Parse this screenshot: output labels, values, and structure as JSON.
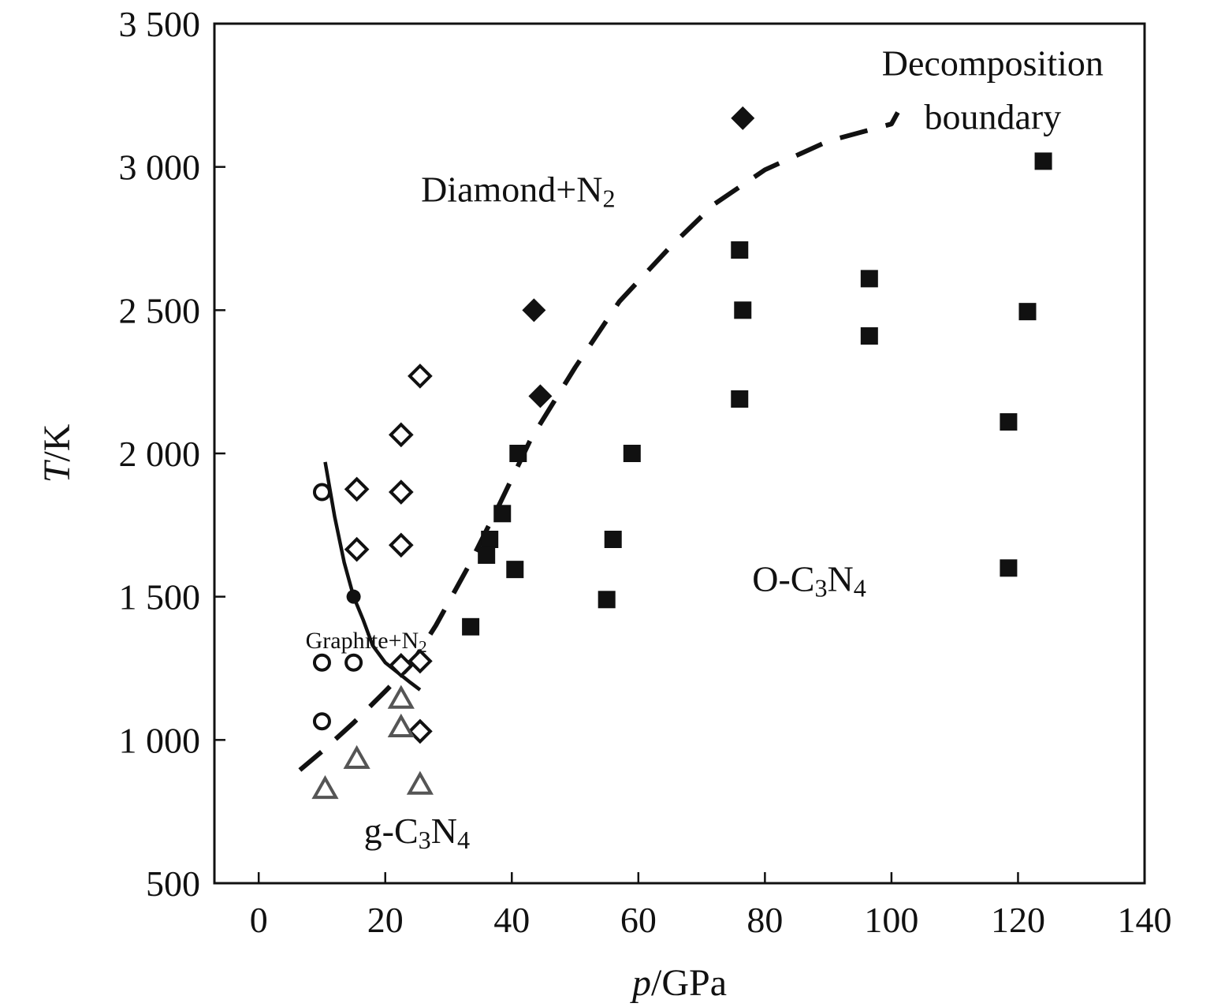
{
  "chart_data": {
    "type": "scatter",
    "title": "",
    "xlabel": {
      "italic": "p",
      "rest": "/GPa"
    },
    "ylabel": {
      "italic": "T",
      "rest": "/K"
    },
    "xlim": [
      -7,
      140
    ],
    "ylim": [
      500,
      3500
    ],
    "x_ticks": [
      0,
      20,
      40,
      60,
      80,
      100,
      120,
      140
    ],
    "x_tick_labels": [
      "0",
      "20",
      "40",
      "60",
      "80",
      "100",
      "120",
      "140"
    ],
    "y_ticks": [
      500,
      1000,
      1500,
      2000,
      2500,
      3000,
      3500
    ],
    "y_tick_labels": [
      "500",
      "1 000",
      "1 500",
      "2 000",
      "2 500",
      "3 000",
      "3 500"
    ],
    "grid": false,
    "series": [
      {
        "marker": "open-circle",
        "points": [
          [
            10,
            1865
          ],
          [
            10,
            1270
          ],
          [
            15,
            1270
          ],
          [
            10,
            1065
          ]
        ]
      },
      {
        "marker": "open-diamond",
        "points": [
          [
            25.5,
            2270
          ],
          [
            22.5,
            2065
          ],
          [
            15.5,
            1875
          ],
          [
            22.5,
            1865
          ],
          [
            15.5,
            1665
          ],
          [
            22.5,
            1680
          ],
          [
            22.5,
            1260
          ],
          [
            25.5,
            1275
          ],
          [
            25.5,
            1030
          ]
        ]
      },
      {
        "marker": "open-triangle",
        "color": "#555555",
        "points": [
          [
            22.5,
            1145
          ],
          [
            22.5,
            1045
          ],
          [
            15.5,
            935
          ],
          [
            10.5,
            830
          ],
          [
            25.5,
            845
          ]
        ]
      },
      {
        "marker": "filled-diamond",
        "points": [
          [
            76.5,
            3170
          ],
          [
            43.5,
            2500
          ],
          [
            44.5,
            2200
          ]
        ]
      },
      {
        "marker": "filled-square",
        "points": [
          [
            124,
            3020
          ],
          [
            76,
            2710
          ],
          [
            96.5,
            2610
          ],
          [
            76.5,
            2500
          ],
          [
            121.5,
            2495
          ],
          [
            96.5,
            2410
          ],
          [
            76,
            2190
          ],
          [
            118.5,
            2110
          ],
          [
            41,
            2000
          ],
          [
            59,
            2000
          ],
          [
            38.5,
            1790
          ],
          [
            36.5,
            1700
          ],
          [
            56,
            1700
          ],
          [
            36,
            1645
          ],
          [
            40.5,
            1595
          ],
          [
            118.5,
            1600
          ],
          [
            55,
            1490
          ],
          [
            33.5,
            1395
          ]
        ]
      }
    ],
    "boundaries": [
      {
        "style": "solid",
        "points": [
          [
            10.5,
            1970
          ],
          [
            12,
            1780
          ],
          [
            13.5,
            1620
          ],
          [
            15,
            1500
          ],
          [
            16.5,
            1420
          ],
          [
            18,
            1330
          ],
          [
            20,
            1270
          ],
          [
            22,
            1235
          ],
          [
            24,
            1200
          ],
          [
            25.5,
            1175
          ]
        ]
      },
      {
        "style": "dashed",
        "points": [
          [
            6.5,
            895
          ],
          [
            10,
            960
          ],
          [
            15,
            1060
          ],
          [
            20,
            1170
          ],
          [
            24,
            1260
          ],
          [
            28,
            1400
          ],
          [
            33,
            1600
          ],
          [
            38,
            1820
          ],
          [
            43,
            2050
          ],
          [
            50,
            2300
          ],
          [
            57,
            2530
          ],
          [
            65,
            2720
          ],
          [
            72,
            2870
          ],
          [
            80,
            2990
          ],
          [
            90,
            3090
          ],
          [
            100,
            3150
          ],
          [
            101,
            3190
          ]
        ]
      },
      {
        "style": "marker",
        "marker": "filled-dot",
        "points": [
          [
            15,
            1500
          ]
        ]
      }
    ],
    "region_labels": {
      "diamond": {
        "text": "Diamond+N",
        "sub": "2",
        "at": [
          41,
          2880
        ]
      },
      "graphite": {
        "text": "Graphite+N",
        "sub": "2",
        "at": [
          17,
          1320
        ]
      },
      "g_c3n4": {
        "pre": "g-C",
        "sub1": "3",
        "mid": "N",
        "sub2": "4",
        "at": [
          25,
          640
        ]
      },
      "o_c3n4": {
        "pre": "O-C",
        "sub1": "3",
        "mid": "N",
        "sub2": "4",
        "at": [
          87,
          1520
        ]
      },
      "decomposition": {
        "line1": "Decomposition",
        "line2": "boundary",
        "at": [
          116,
          3320
        ]
      }
    }
  }
}
